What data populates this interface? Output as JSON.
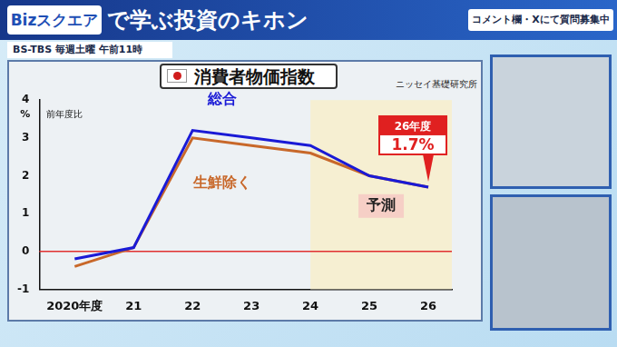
{
  "header": {
    "logo": "Bizスクエア",
    "title": "で学ぶ投資のキホン",
    "schedule": "BS-TBS 毎週土曜 午前11時",
    "notice": "コメント欄・Xにて質問募集中"
  },
  "chart_data": {
    "type": "line",
    "title": "消費者物価指数",
    "source": "ニッセイ基礎研究所",
    "y_unit": "%",
    "y_label": "前年度比",
    "categories": [
      "2020年度",
      "21",
      "22",
      "23",
      "24",
      "25",
      "26"
    ],
    "series": [
      {
        "name": "総合",
        "color": "#1a1ad6",
        "values": [
          -0.2,
          0.1,
          3.2,
          3.0,
          2.8,
          2.0,
          1.7
        ]
      },
      {
        "name": "生鮮除く",
        "color": "#c8682a",
        "values": [
          -0.4,
          0.1,
          3.0,
          2.8,
          2.6,
          2.0,
          1.7
        ]
      }
    ],
    "ylim": [
      -1,
      4
    ],
    "yticks": [
      -1,
      0,
      1,
      2,
      3,
      4
    ],
    "grid": false,
    "marker": "none",
    "hlines": [
      {
        "value": 0,
        "color": "#e03030"
      }
    ],
    "annotations": [
      {
        "text": "予測",
        "x_from": "24",
        "x_to": "26"
      },
      {
        "x": "26",
        "text": "26年度",
        "value_label": "1.7%"
      }
    ]
  }
}
